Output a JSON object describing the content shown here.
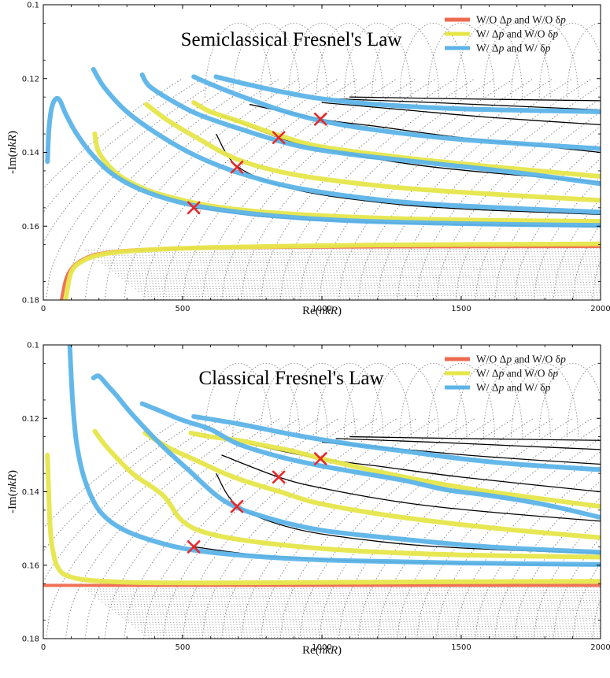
{
  "chart_data": [
    {
      "type": "line",
      "title": "Semiclassical Fresnel's Law",
      "xlabel": "Re(nkR)",
      "ylabel": "-Im(nkR)",
      "xlim": [
        0,
        2000
      ],
      "ylim": [
        0.1,
        0.18
      ],
      "y_inverted": true,
      "xticks": [
        0,
        500,
        1000,
        1500,
        2000
      ],
      "yticks": [
        0.1,
        0.12,
        0.14,
        0.16,
        0.18
      ],
      "xtick_labels": [
        "0",
        "500",
        "1000",
        "1500",
        "2000"
      ],
      "ytick_labels": [
        "0.1",
        "0.12",
        "0.14",
        "0.16",
        "0.18"
      ],
      "legend": [
        "W/O  Δp and W/O  δp",
        "W/    Δp and W/O  δp",
        "W/    Δp and W/    δp"
      ],
      "legend_position": "top-right",
      "colors": {
        "orange": "#ee6a4e",
        "yellow": "#e6e64a",
        "blue": "#5cb4e8",
        "cross": "#e8282a",
        "black": "#000000"
      },
      "crosses": [
        {
          "x": 540,
          "y": 0.155
        },
        {
          "x": 695,
          "y": 0.144
        },
        {
          "x": 845,
          "y": 0.136
        },
        {
          "x": 995,
          "y": 0.131
        }
      ],
      "black_curves": [
        {
          "x": [
            540,
            800,
            1100,
            1400,
            1700,
            2000
          ],
          "y": [
            0.155,
            0.1575,
            0.1587,
            0.1594,
            0.1598,
            0.1601
          ]
        },
        {
          "x": [
            620,
            700,
            900,
            1200,
            1500,
            2000
          ],
          "y": [
            0.135,
            0.144,
            0.15,
            0.1535,
            0.1553,
            0.1568
          ]
        },
        {
          "x": [
            640,
            845,
            1000,
            1300,
            1600,
            2000
          ],
          "y": [
            0.13,
            0.136,
            0.139,
            0.143,
            0.1455,
            0.148
          ]
        },
        {
          "x": [
            740,
            995,
            1200,
            1500,
            2000
          ],
          "y": [
            0.127,
            0.131,
            0.133,
            0.136,
            0.14
          ]
        },
        {
          "x": [
            1000,
            1300,
            1600,
            2000
          ],
          "y": [
            0.1265,
            0.1285,
            0.1305,
            0.1325
          ]
        },
        {
          "x": [
            1050,
            1400,
            1700,
            2000
          ],
          "y": [
            0.1255,
            0.1265,
            0.1275,
            0.1285
          ]
        },
        {
          "x": [
            1100,
            1500,
            2000
          ],
          "y": [
            0.125,
            0.1255,
            0.126
          ]
        }
      ],
      "series": [
        {
          "name": "W/O Δp and W/O δp",
          "color": "orange",
          "width": 4,
          "x": [
            65,
            80,
            100,
            130,
            180,
            260,
            400,
            600,
            900,
            1300,
            2000
          ],
          "y": [
            0.18,
            0.1745,
            0.1715,
            0.1695,
            0.1678,
            0.1668,
            0.1662,
            0.1659,
            0.1657,
            0.1656,
            0.1655
          ]
        },
        {
          "name": "W/ Δp and W/O δp",
          "color": "yellow",
          "width": 6,
          "x": [
            80,
            100,
            140,
            200,
            300,
            500,
            800,
            1200,
            2000
          ],
          "y": [
            0.18,
            0.1725,
            0.1695,
            0.1678,
            0.1668,
            0.166,
            0.1655,
            0.1651,
            0.1648
          ]
        },
        {
          "name": "W/ Δp and W/O δp",
          "color": "yellow",
          "width": 6,
          "x": [
            185,
            200,
            260,
            350,
            450,
            600,
            800,
            1100,
            1500,
            2000
          ],
          "y": [
            0.135,
            0.14,
            0.1455,
            0.1495,
            0.152,
            0.1545,
            0.1562,
            0.1575,
            0.1583,
            0.1587
          ]
        },
        {
          "name": "W/ Δp and W/O δp",
          "color": "yellow",
          "width": 6,
          "x": [
            370,
            450,
            550,
            700,
            900,
            1200,
            1500,
            2000
          ],
          "y": [
            0.127,
            0.1315,
            0.136,
            0.142,
            0.146,
            0.149,
            0.1508,
            0.153
          ]
        },
        {
          "name": "W/ Δp and W/O δp",
          "color": "yellow",
          "width": 6,
          "x": [
            540,
            600,
            700,
            850,
            1000,
            1300,
            1600,
            2000
          ],
          "y": [
            0.1265,
            0.129,
            0.1315,
            0.1355,
            0.1385,
            0.1415,
            0.1438,
            0.1465
          ]
        },
        {
          "name": "W/ Δp and W/ δp",
          "color": "blue",
          "width": 6,
          "x": [
            15,
            20,
            30,
            45,
            60,
            80,
            120,
            180,
            260,
            380,
            550,
            800,
            1100,
            1500,
            2000
          ],
          "y": [
            0.1425,
            0.134,
            0.128,
            0.1255,
            0.126,
            0.1295,
            0.135,
            0.141,
            0.1465,
            0.151,
            0.1545,
            0.157,
            0.1585,
            0.1593,
            0.1598
          ]
        },
        {
          "name": "W/ Δp and W/ δp",
          "color": "blue",
          "width": 6,
          "x": [
            180,
            220,
            300,
            420,
            550,
            700,
            900,
            1200,
            1500,
            2000
          ],
          "y": [
            0.1175,
            0.1225,
            0.129,
            0.1355,
            0.141,
            0.1455,
            0.1495,
            0.1528,
            0.1545,
            0.1562
          ]
        },
        {
          "name": "W/ Δp and W/ δp",
          "color": "blue",
          "width": 6,
          "x": [
            355,
            380,
            450,
            550,
            700,
            900,
            1100,
            1400,
            1700,
            2000
          ],
          "y": [
            0.119,
            0.122,
            0.1255,
            0.1295,
            0.1335,
            0.138,
            0.1405,
            0.143,
            0.1455,
            0.1485
          ]
        },
        {
          "name": "W/ Δp and W/ δp",
          "color": "blue",
          "width": 6,
          "x": [
            540,
            600,
            700,
            850,
            1000,
            1200,
            1500,
            2000
          ],
          "y": [
            0.1195,
            0.1215,
            0.1245,
            0.1285,
            0.1315,
            0.134,
            0.1365,
            0.139
          ]
        },
        {
          "name": "W/ Δp and W/ δp",
          "color": "blue",
          "width": 6,
          "x": [
            620,
            700,
            850,
            1000,
            1200,
            1500,
            2000
          ],
          "y": [
            0.1195,
            0.121,
            0.1235,
            0.1255,
            0.127,
            0.1282,
            0.129
          ]
        }
      ]
    },
    {
      "type": "line",
      "title": "Classical Fresnel's Law",
      "xlabel": "Re(nkR)",
      "ylabel": "-Im(nkR)",
      "xlim": [
        0,
        2000
      ],
      "ylim": [
        0.1,
        0.18
      ],
      "y_inverted": true,
      "xticks": [
        0,
        500,
        1000,
        1500,
        2000
      ],
      "yticks": [
        0.1,
        0.12,
        0.14,
        0.16,
        0.18
      ],
      "xtick_labels": [
        "0",
        "500",
        "1000",
        "1500",
        "2000"
      ],
      "ytick_labels": [
        "0.1",
        "0.12",
        "0.14",
        "0.16",
        "0.18"
      ],
      "legend": [
        "W/O  Δp and W/O  δp",
        "W/    Δp and W/O  δp",
        "W/    Δp and W/    δp"
      ],
      "legend_position": "top-right",
      "colors": {
        "orange": "#ee6a4e",
        "yellow": "#e6e64a",
        "blue": "#5cb4e8",
        "cross": "#e8282a",
        "black": "#000000"
      },
      "crosses": [
        {
          "x": 540,
          "y": 0.155
        },
        {
          "x": 695,
          "y": 0.144
        },
        {
          "x": 845,
          "y": 0.136
        },
        {
          "x": 995,
          "y": 0.131
        }
      ],
      "black_curves": [
        {
          "x": [
            540,
            800,
            1100,
            1400,
            1700,
            2000
          ],
          "y": [
            0.155,
            0.1575,
            0.1587,
            0.1594,
            0.1598,
            0.1601
          ]
        },
        {
          "x": [
            620,
            700,
            900,
            1200,
            1500,
            2000
          ],
          "y": [
            0.135,
            0.144,
            0.15,
            0.1535,
            0.1553,
            0.1568
          ]
        },
        {
          "x": [
            640,
            845,
            1000,
            1300,
            1600,
            2000
          ],
          "y": [
            0.13,
            0.136,
            0.139,
            0.143,
            0.1455,
            0.148
          ]
        },
        {
          "x": [
            740,
            995,
            1200,
            1500,
            2000
          ],
          "y": [
            0.127,
            0.131,
            0.133,
            0.136,
            0.14
          ]
        },
        {
          "x": [
            1000,
            1300,
            1600,
            2000
          ],
          "y": [
            0.1265,
            0.1285,
            0.1305,
            0.1325
          ]
        },
        {
          "x": [
            1050,
            1400,
            1700,
            2000
          ],
          "y": [
            0.1255,
            0.1265,
            0.1275,
            0.1285
          ]
        },
        {
          "x": [
            1100,
            1500,
            2000
          ],
          "y": [
            0.125,
            0.1255,
            0.126
          ]
        }
      ],
      "series": [
        {
          "name": "W/O Δp and W/O δp",
          "color": "orange",
          "width": 4,
          "x": [
            0,
            2000
          ],
          "y": [
            0.1655,
            0.1655
          ]
        },
        {
          "name": "W/ Δp and W/O δp",
          "color": "yellow",
          "width": 6,
          "x": [
            15,
            25,
            40,
            60,
            90,
            150,
            250,
            400,
            700,
            1000,
            1500,
            2000
          ],
          "y": [
            0.13,
            0.15,
            0.158,
            0.1615,
            0.163,
            0.164,
            0.1645,
            0.1648,
            0.1648,
            0.1647,
            0.1645,
            0.1644
          ]
        },
        {
          "name": "W/ Δp and W/O δp",
          "color": "yellow",
          "width": 6,
          "x": [
            185,
            230,
            320,
            430,
            500,
            600,
            800,
            1100,
            1500,
            2000
          ],
          "y": [
            0.1235,
            0.128,
            0.135,
            0.141,
            0.148,
            0.1515,
            0.154,
            0.156,
            0.1572,
            0.1578
          ]
        },
        {
          "name": "W/ Δp and W/O δp",
          "color": "yellow",
          "width": 6,
          "x": [
            365,
            450,
            550,
            650,
            720,
            850,
            980,
            1200,
            1450,
            1700,
            2000
          ],
          "y": [
            0.124,
            0.128,
            0.1315,
            0.135,
            0.137,
            0.14,
            0.143,
            0.146,
            0.1485,
            0.1505,
            0.1525
          ]
        },
        {
          "name": "W/ Δp and W/O δp",
          "color": "yellow",
          "width": 6,
          "x": [
            530,
            600,
            700,
            800,
            900,
            1000,
            1200,
            1400,
            1600,
            2000
          ],
          "y": [
            0.124,
            0.125,
            0.126,
            0.1275,
            0.129,
            0.131,
            0.1345,
            0.1375,
            0.14,
            0.144
          ]
        },
        {
          "name": "W/ Δp and W/ δp",
          "color": "blue",
          "width": 6,
          "x": [
            95,
            105,
            120,
            150,
            200,
            280,
            400,
            550,
            800,
            1100,
            1500,
            2000
          ],
          "y": [
            0.1,
            0.115,
            0.127,
            0.137,
            0.145,
            0.15,
            0.1535,
            0.156,
            0.1578,
            0.1588,
            0.1594,
            0.1598
          ]
        },
        {
          "name": "W/ Δp and W/ δp",
          "color": "blue",
          "width": 6,
          "x": [
            180,
            200,
            230,
            260,
            320,
            420,
            520,
            650,
            800,
            1000,
            1300,
            1600,
            2000
          ],
          "y": [
            0.109,
            0.1085,
            0.111,
            0.1135,
            0.119,
            0.127,
            0.134,
            0.1425,
            0.147,
            0.1505,
            0.153,
            0.155,
            0.1565
          ]
        },
        {
          "name": "W/ Δp and W/ δp",
          "color": "blue",
          "width": 6,
          "x": [
            355,
            420,
            500,
            600,
            700,
            850,
            1000,
            1150,
            1300,
            1450,
            1600,
            1800,
            2000
          ],
          "y": [
            0.116,
            0.118,
            0.1205,
            0.123,
            0.127,
            0.1305,
            0.133,
            0.135,
            0.137,
            0.1395,
            0.141,
            0.1435,
            0.147
          ]
        },
        {
          "name": "W/ Δp and W/ δp",
          "color": "blue",
          "width": 6,
          "x": [
            540,
            700,
            900,
            1100,
            1300,
            1500,
            1700,
            2000
          ],
          "y": [
            0.1195,
            0.1215,
            0.1245,
            0.127,
            0.129,
            0.131,
            0.1325,
            0.134
          ]
        }
      ]
    }
  ]
}
